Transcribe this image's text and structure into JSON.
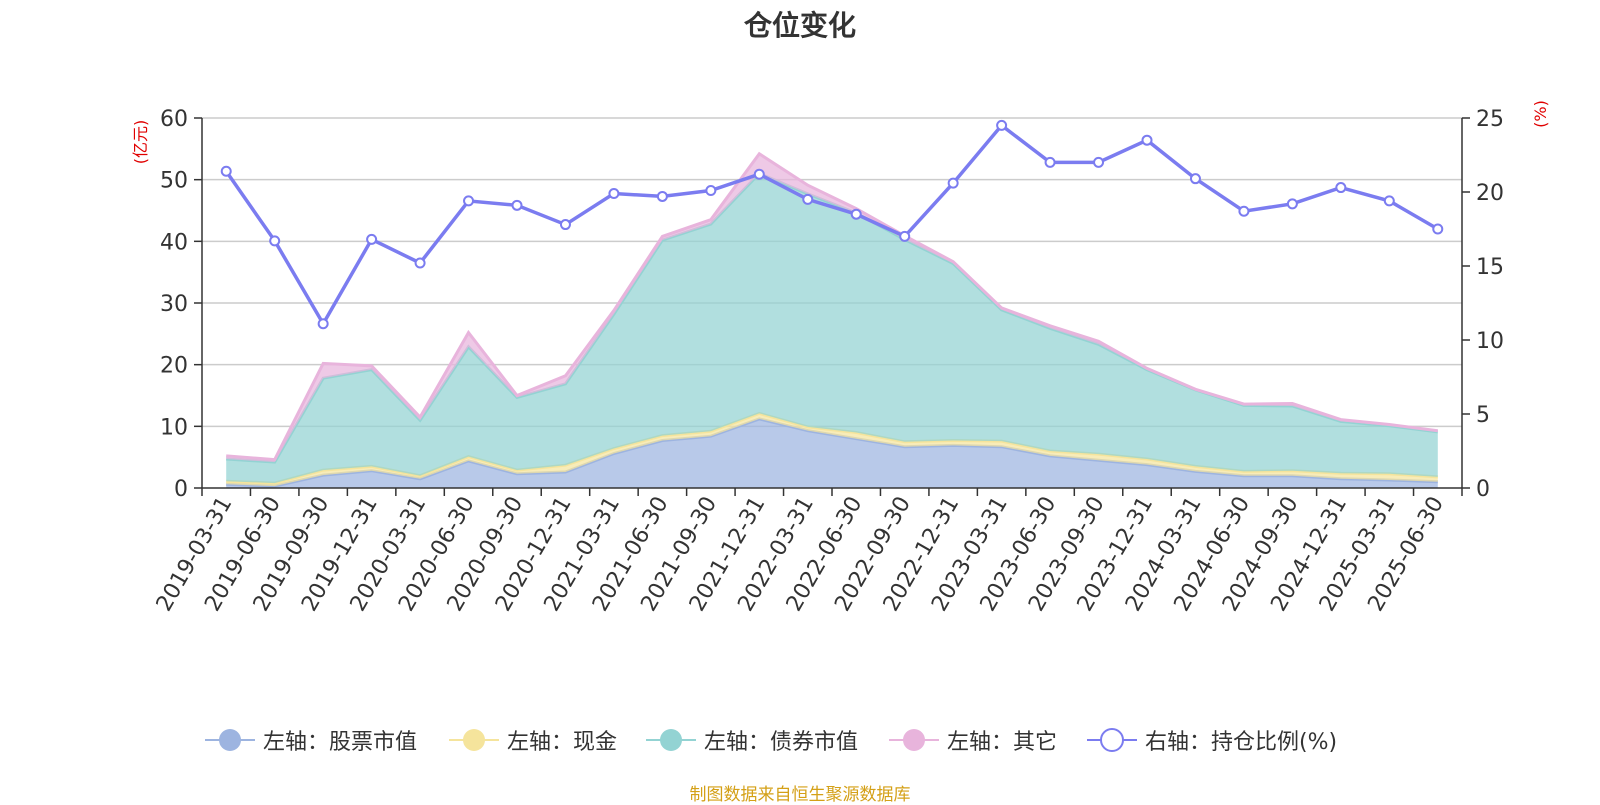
{
  "title": "仓位变化",
  "source_note": "制图数据来自恒生聚源数据库",
  "chart_data": {
    "type": "area",
    "title": "仓位变化",
    "left_axis_unit": "(亿元)",
    "right_axis_unit": "(%)",
    "left_ylim": [
      0,
      60
    ],
    "left_ticks": [
      0,
      10,
      20,
      30,
      40,
      50,
      60
    ],
    "right_ylim": [
      0,
      25
    ],
    "right_ticks": [
      0,
      5,
      10,
      15,
      20,
      25
    ],
    "grid": true,
    "legend_position": "bottom",
    "categories": [
      "2019-03-31",
      "2019-06-30",
      "2019-09-30",
      "2019-12-31",
      "2020-03-31",
      "2020-06-30",
      "2020-09-30",
      "2020-12-31",
      "2021-03-31",
      "2021-06-30",
      "2021-09-30",
      "2021-12-31",
      "2022-03-31",
      "2022-06-30",
      "2022-09-30",
      "2022-12-31",
      "2023-03-31",
      "2023-06-30",
      "2023-09-30",
      "2023-12-31",
      "2024-03-31",
      "2024-06-30",
      "2024-09-30",
      "2024-12-31",
      "2025-03-31",
      "2025-06-30"
    ],
    "series": [
      {
        "name": "左轴：股票市值",
        "axis": "left",
        "kind": "stacked-area",
        "color": "#9db4e0",
        "values": [
          0.6,
          0.3,
          2.1,
          2.8,
          1.5,
          4.4,
          2.3,
          2.6,
          5.6,
          7.7,
          8.4,
          11.2,
          9.3,
          8.0,
          6.7,
          6.9,
          6.7,
          5.2,
          4.5,
          3.8,
          2.7,
          2.0,
          2.0,
          1.5,
          1.3,
          1.0
        ]
      },
      {
        "name": "左轴：现金",
        "axis": "left",
        "kind": "stacked-area",
        "color": "#f5e49c",
        "values": [
          0.5,
          0.5,
          0.8,
          0.7,
          0.5,
          0.7,
          0.6,
          1.1,
          0.8,
          0.8,
          0.8,
          0.9,
          0.6,
          1.0,
          0.8,
          0.8,
          0.9,
          0.8,
          1.0,
          0.9,
          0.8,
          0.7,
          0.8,
          0.9,
          1.0,
          0.8
        ]
      },
      {
        "name": "左轴：债券市值",
        "axis": "left",
        "kind": "stacked-area",
        "color": "#93d3d3",
        "values": [
          3.6,
          3.4,
          14.9,
          15.7,
          9.0,
          17.8,
          11.8,
          13.2,
          21.8,
          31.7,
          33.6,
          38.9,
          37.8,
          35.6,
          32.8,
          28.7,
          21.3,
          19.9,
          17.8,
          14.5,
          12.4,
          10.7,
          10.5,
          8.4,
          7.8,
          7.3
        ]
      },
      {
        "name": "左轴：其它",
        "axis": "left",
        "kind": "stacked-area",
        "color": "#e8b4dc",
        "values": [
          0.5,
          0.4,
          2.4,
          0.6,
          0.5,
          2.3,
          0.3,
          1.3,
          0.6,
          0.6,
          0.7,
          3.2,
          1.4,
          0.7,
          0.6,
          0.3,
          0.3,
          0.4,
          0.5,
          0.2,
          0.1,
          0.2,
          0.4,
          0.3,
          0.2,
          0.2
        ]
      },
      {
        "name": "右轴：持仓比例(%)",
        "axis": "right",
        "kind": "line",
        "color": "#7b7cf0",
        "values": [
          21.4,
          16.7,
          11.1,
          16.8,
          15.2,
          19.4,
          19.1,
          17.8,
          19.9,
          19.7,
          20.1,
          21.2,
          19.5,
          18.5,
          17.0,
          20.6,
          24.5,
          22.0,
          22.0,
          23.5,
          20.9,
          18.7,
          19.2,
          20.3,
          19.4,
          17.5
        ]
      }
    ]
  }
}
